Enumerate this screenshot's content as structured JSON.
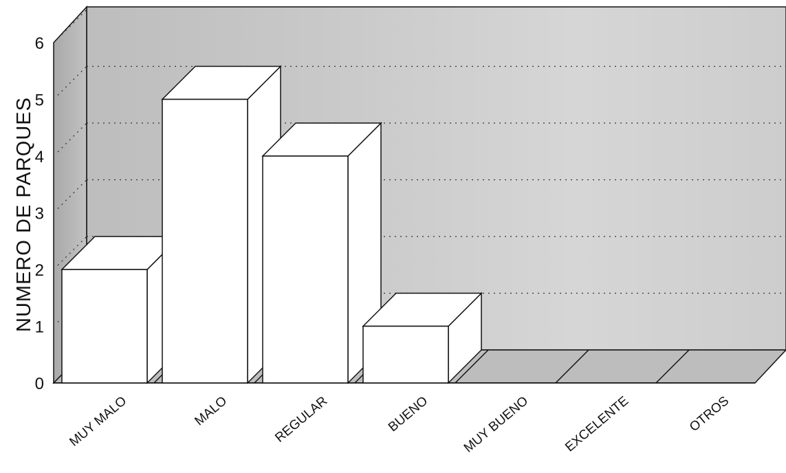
{
  "chart_data": {
    "type": "bar",
    "style": "3d",
    "categories": [
      "MUY MALO",
      "MALO",
      "REGULAR",
      "BUENO",
      "MUY BUENO",
      "EXCELENTE",
      "OTROS"
    ],
    "values": [
      2,
      5,
      4,
      1,
      0,
      0,
      0
    ],
    "ylabel": "NUMERO DE PARQUES",
    "xlabel": "",
    "title": "",
    "ylim": [
      0,
      6
    ],
    "yticks": [
      "0",
      "1",
      "2",
      "3",
      "4",
      "5",
      "6"
    ],
    "grid": "dotted horizontal lines on back wall",
    "colors": {
      "background_wall": "#c4c4c4",
      "bar_face": "#ffffff",
      "bar_outline": "#111111"
    }
  }
}
